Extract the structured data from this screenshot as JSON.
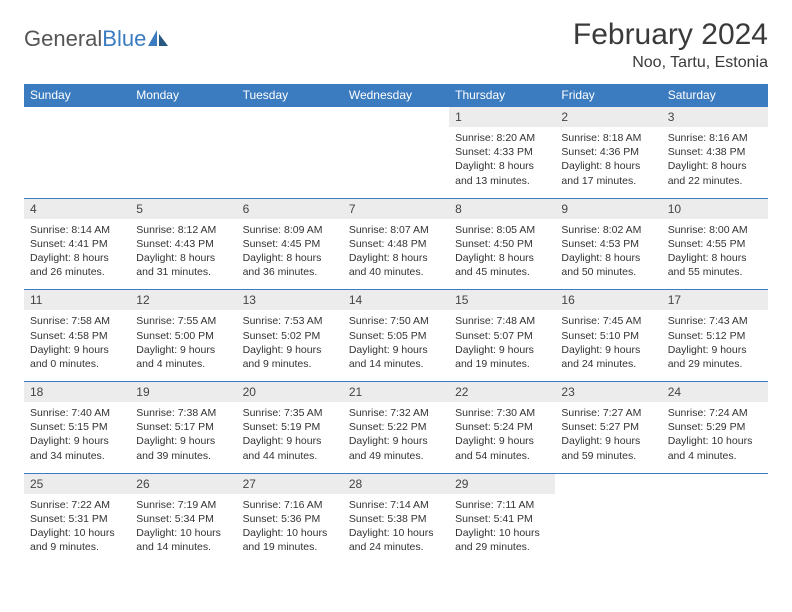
{
  "brand": {
    "part1": "General",
    "part2": "Blue"
  },
  "title": "February 2024",
  "location": "Noo, Tartu, Estonia",
  "colors": {
    "accent": "#3b7bbf",
    "dayband": "#ececec",
    "text": "#333333",
    "background": "#ffffff"
  },
  "dow": [
    "Sunday",
    "Monday",
    "Tuesday",
    "Wednesday",
    "Thursday",
    "Friday",
    "Saturday"
  ],
  "weeks": [
    [
      {
        "empty": true
      },
      {
        "empty": true
      },
      {
        "empty": true
      },
      {
        "empty": true
      },
      {
        "n": "1",
        "sr": "Sunrise: 8:20 AM",
        "ss": "Sunset: 4:33 PM",
        "dl": "Daylight: 8 hours and 13 minutes."
      },
      {
        "n": "2",
        "sr": "Sunrise: 8:18 AM",
        "ss": "Sunset: 4:36 PM",
        "dl": "Daylight: 8 hours and 17 minutes."
      },
      {
        "n": "3",
        "sr": "Sunrise: 8:16 AM",
        "ss": "Sunset: 4:38 PM",
        "dl": "Daylight: 8 hours and 22 minutes."
      }
    ],
    [
      {
        "n": "4",
        "sr": "Sunrise: 8:14 AM",
        "ss": "Sunset: 4:41 PM",
        "dl": "Daylight: 8 hours and 26 minutes."
      },
      {
        "n": "5",
        "sr": "Sunrise: 8:12 AM",
        "ss": "Sunset: 4:43 PM",
        "dl": "Daylight: 8 hours and 31 minutes."
      },
      {
        "n": "6",
        "sr": "Sunrise: 8:09 AM",
        "ss": "Sunset: 4:45 PM",
        "dl": "Daylight: 8 hours and 36 minutes."
      },
      {
        "n": "7",
        "sr": "Sunrise: 8:07 AM",
        "ss": "Sunset: 4:48 PM",
        "dl": "Daylight: 8 hours and 40 minutes."
      },
      {
        "n": "8",
        "sr": "Sunrise: 8:05 AM",
        "ss": "Sunset: 4:50 PM",
        "dl": "Daylight: 8 hours and 45 minutes."
      },
      {
        "n": "9",
        "sr": "Sunrise: 8:02 AM",
        "ss": "Sunset: 4:53 PM",
        "dl": "Daylight: 8 hours and 50 minutes."
      },
      {
        "n": "10",
        "sr": "Sunrise: 8:00 AM",
        "ss": "Sunset: 4:55 PM",
        "dl": "Daylight: 8 hours and 55 minutes."
      }
    ],
    [
      {
        "n": "11",
        "sr": "Sunrise: 7:58 AM",
        "ss": "Sunset: 4:58 PM",
        "dl": "Daylight: 9 hours and 0 minutes."
      },
      {
        "n": "12",
        "sr": "Sunrise: 7:55 AM",
        "ss": "Sunset: 5:00 PM",
        "dl": "Daylight: 9 hours and 4 minutes."
      },
      {
        "n": "13",
        "sr": "Sunrise: 7:53 AM",
        "ss": "Sunset: 5:02 PM",
        "dl": "Daylight: 9 hours and 9 minutes."
      },
      {
        "n": "14",
        "sr": "Sunrise: 7:50 AM",
        "ss": "Sunset: 5:05 PM",
        "dl": "Daylight: 9 hours and 14 minutes."
      },
      {
        "n": "15",
        "sr": "Sunrise: 7:48 AM",
        "ss": "Sunset: 5:07 PM",
        "dl": "Daylight: 9 hours and 19 minutes."
      },
      {
        "n": "16",
        "sr": "Sunrise: 7:45 AM",
        "ss": "Sunset: 5:10 PM",
        "dl": "Daylight: 9 hours and 24 minutes."
      },
      {
        "n": "17",
        "sr": "Sunrise: 7:43 AM",
        "ss": "Sunset: 5:12 PM",
        "dl": "Daylight: 9 hours and 29 minutes."
      }
    ],
    [
      {
        "n": "18",
        "sr": "Sunrise: 7:40 AM",
        "ss": "Sunset: 5:15 PM",
        "dl": "Daylight: 9 hours and 34 minutes."
      },
      {
        "n": "19",
        "sr": "Sunrise: 7:38 AM",
        "ss": "Sunset: 5:17 PM",
        "dl": "Daylight: 9 hours and 39 minutes."
      },
      {
        "n": "20",
        "sr": "Sunrise: 7:35 AM",
        "ss": "Sunset: 5:19 PM",
        "dl": "Daylight: 9 hours and 44 minutes."
      },
      {
        "n": "21",
        "sr": "Sunrise: 7:32 AM",
        "ss": "Sunset: 5:22 PM",
        "dl": "Daylight: 9 hours and 49 minutes."
      },
      {
        "n": "22",
        "sr": "Sunrise: 7:30 AM",
        "ss": "Sunset: 5:24 PM",
        "dl": "Daylight: 9 hours and 54 minutes."
      },
      {
        "n": "23",
        "sr": "Sunrise: 7:27 AM",
        "ss": "Sunset: 5:27 PM",
        "dl": "Daylight: 9 hours and 59 minutes."
      },
      {
        "n": "24",
        "sr": "Sunrise: 7:24 AM",
        "ss": "Sunset: 5:29 PM",
        "dl": "Daylight: 10 hours and 4 minutes."
      }
    ],
    [
      {
        "n": "25",
        "sr": "Sunrise: 7:22 AM",
        "ss": "Sunset: 5:31 PM",
        "dl": "Daylight: 10 hours and 9 minutes."
      },
      {
        "n": "26",
        "sr": "Sunrise: 7:19 AM",
        "ss": "Sunset: 5:34 PM",
        "dl": "Daylight: 10 hours and 14 minutes."
      },
      {
        "n": "27",
        "sr": "Sunrise: 7:16 AM",
        "ss": "Sunset: 5:36 PM",
        "dl": "Daylight: 10 hours and 19 minutes."
      },
      {
        "n": "28",
        "sr": "Sunrise: 7:14 AM",
        "ss": "Sunset: 5:38 PM",
        "dl": "Daylight: 10 hours and 24 minutes."
      },
      {
        "n": "29",
        "sr": "Sunrise: 7:11 AM",
        "ss": "Sunset: 5:41 PM",
        "dl": "Daylight: 10 hours and 29 minutes."
      },
      {
        "empty": true
      },
      {
        "empty": true
      }
    ]
  ]
}
